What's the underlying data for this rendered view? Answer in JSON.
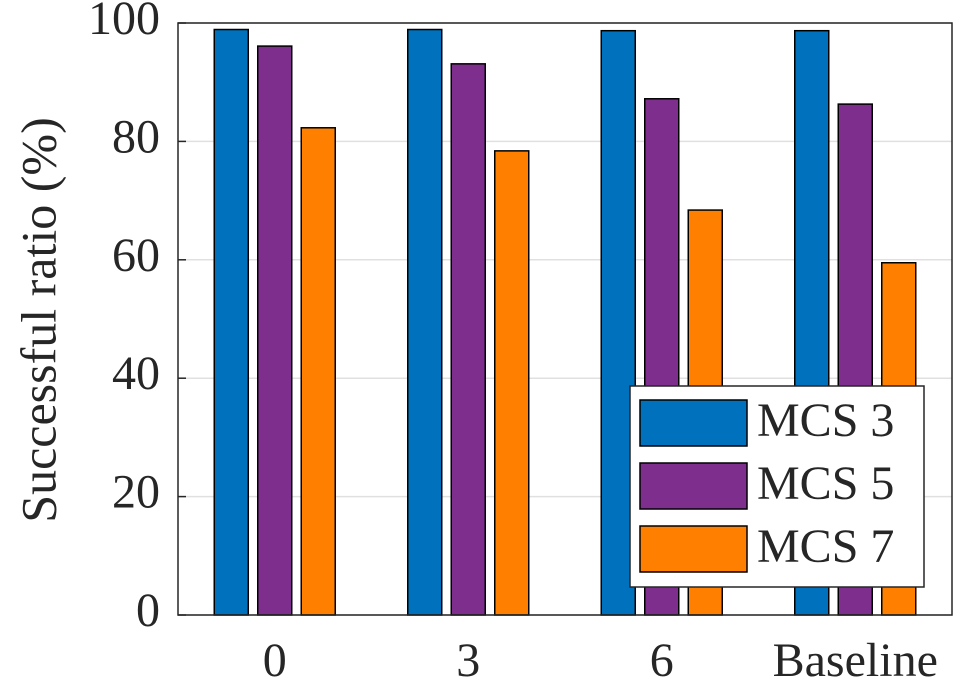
{
  "chart_data": {
    "type": "bar",
    "y_label": "Successful ratio (%)",
    "categories": [
      "0",
      "3",
      "6",
      "Baseline"
    ],
    "series": [
      {
        "name": "MCS 3",
        "color": "#0072bd",
        "values": [
          98.9,
          98.9,
          98.7,
          98.7
        ]
      },
      {
        "name": "MCS 5",
        "color": "#7e2f8e",
        "values": [
          96.1,
          93.1,
          87.2,
          86.3
        ]
      },
      {
        "name": "MCS 7",
        "color": "#ff8000",
        "values": [
          82.3,
          78.4,
          68.4,
          59.5
        ]
      }
    ],
    "ylim": [
      0,
      100
    ],
    "yticks": [
      0,
      20,
      40,
      60,
      80,
      100
    ],
    "grid": true,
    "legend": "lower right"
  }
}
